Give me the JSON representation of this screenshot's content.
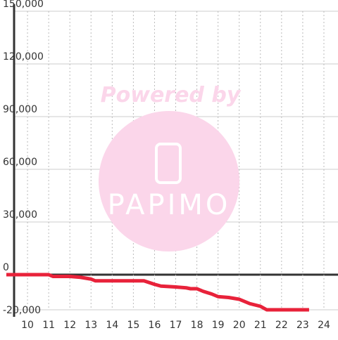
{
  "chart_data": {
    "type": "line",
    "annotations": [
      "Powered by",
      "PAPIMO"
    ],
    "x": [
      9,
      11,
      11.2,
      12,
      12.5,
      13,
      13.2,
      15,
      15.5,
      16,
      16.3,
      17,
      17.5,
      17.7,
      18,
      18.3,
      18.7,
      19,
      19.5,
      20,
      20.5,
      21,
      21.3,
      22,
      23.3
    ],
    "series": [
      {
        "color": "#e8223a",
        "values": [
          0,
          0,
          -1000,
          -1000,
          -1500,
          -2500,
          -3500,
          -3500,
          -3500,
          -5500,
          -6500,
          -7000,
          -7500,
          -8000,
          -8000,
          -9500,
          -11000,
          -12500,
          -13000,
          -14000,
          -16500,
          -18000,
          -20000,
          -20000,
          -20000
        ]
      }
    ],
    "xlim": [
      9,
      24.3
    ],
    "xticks": [
      10,
      11,
      12,
      13,
      14,
      15,
      16,
      17,
      18,
      19,
      20,
      21,
      22,
      23,
      24
    ],
    "ylim": [
      -20000,
      150000
    ],
    "yticks": [
      {
        "value": -20000,
        "label": "-20,000"
      },
      0,
      {
        "value": 30000,
        "label": "30,000"
      },
      {
        "value": 60000,
        "label": "60,000"
      },
      {
        "value": 90000,
        "label": "90,000"
      },
      {
        "value": 120000,
        "label": "120,000"
      },
      {
        "value": 150000,
        "label": "150,000"
      }
    ],
    "grid": true
  }
}
